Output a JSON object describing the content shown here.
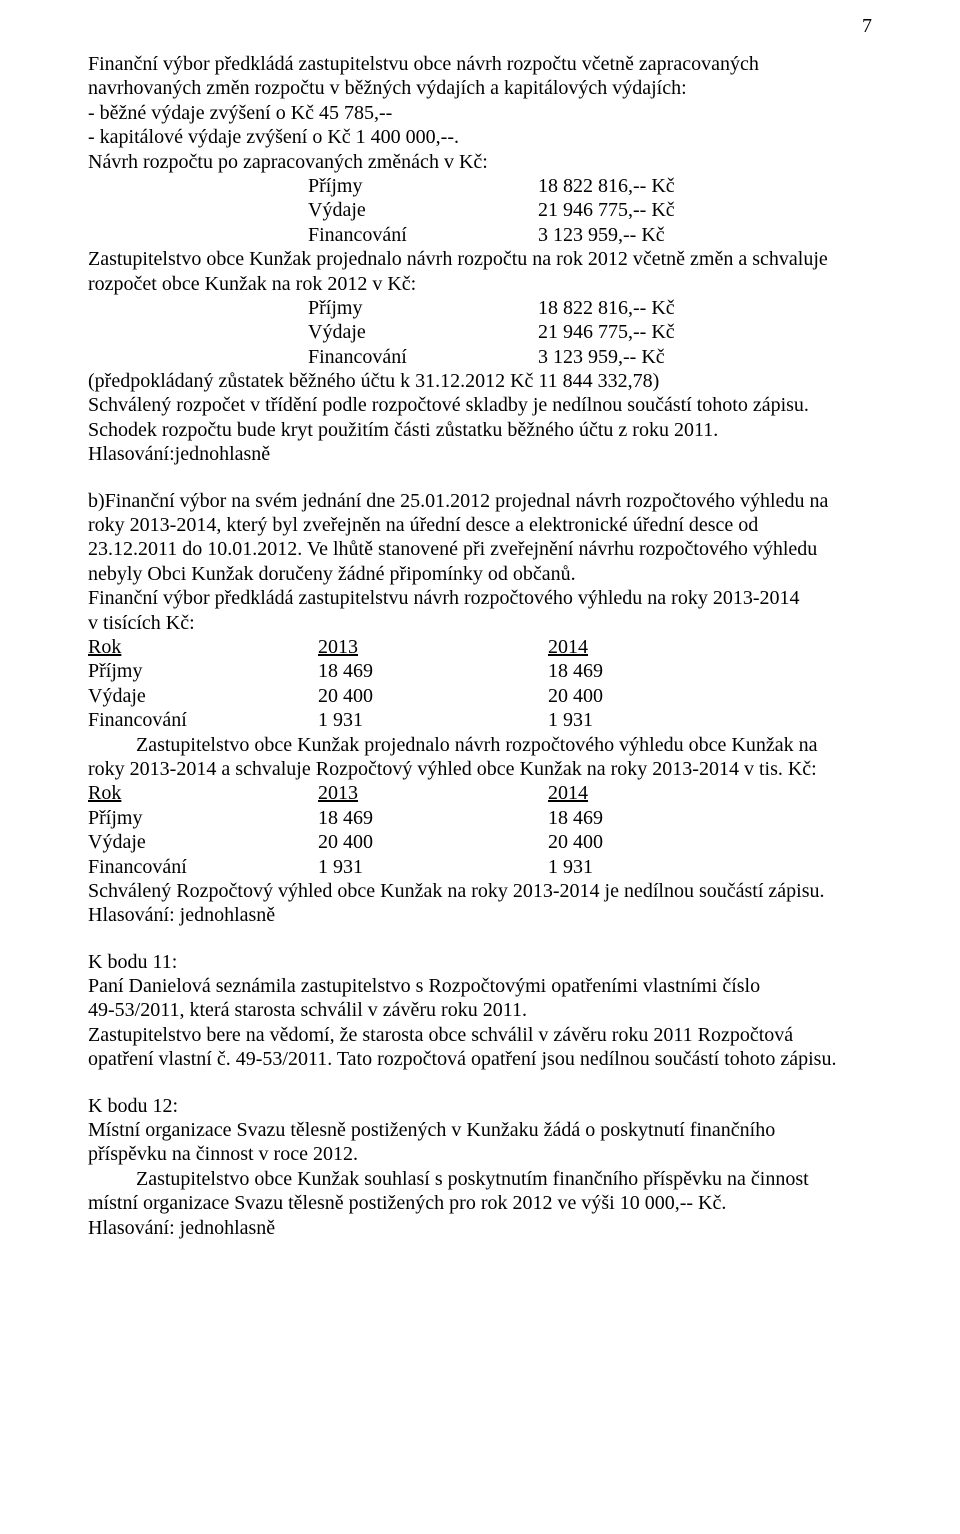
{
  "page_number": "7",
  "p1": {
    "l1": "Finanční výbor předkládá zastupitelstvu obce návrh rozpočtu včetně zapracovaných",
    "l2": "navrhovaných změn rozpočtu v běžných výdajích a kapitálových výdajích:",
    "l3": "- běžné výdaje zvýšení o        Kč      45 785,--",
    "l4": "- kapitálové výdaje zvýšení o Kč 1 400 000,--.",
    "l5": "Návrh rozpočtu po zapracovaných změnách v Kč:",
    "r1a": "Příjmy",
    "r1b": "18 822 816,-- Kč",
    "r2a": "Výdaje",
    "r2b": "21 946 775,-- Kč",
    "r3a": "Financování",
    "r3b": "3 123 959,-- Kč",
    "l6": "Zastupitelstvo obce Kunžak projednalo návrh rozpočtu na rok 2012 včetně změn a schvaluje",
    "l7": "rozpočet obce Kunžak na rok 2012 v Kč:",
    "r4a": "Příjmy",
    "r4b": "18 822 816,-- Kč",
    "r5a": "Výdaje",
    "r5b": "21 946 775,-- Kč",
    "r6a": "Financování",
    "r6b": "3 123 959,-- Kč",
    "l8": "(předpokládaný zůstatek běžného účtu k 31.12.2012 Kč 11 844 332,78)",
    "l9": "Schválený rozpočet v třídění podle rozpočtové skladby je nedílnou součástí tohoto  zápisu.",
    "l10": "Schodek rozpočtu bude kryt použitím části zůstatku běžného účtu z roku 2011.",
    "l11": "Hlasování:jednohlasně"
  },
  "p2": {
    "l1": "b)Finanční výbor na svém jednání dne 25.01.2012 projednal návrh rozpočtového výhledu na",
    "l2": "roky 2013-2014, který byl zveřejněn na úřední desce a elektronické úřední desce od",
    "l3": "23.12.2011 do 10.01.2012. Ve lhůtě stanovené při zveřejnění návrhu rozpočtového výhledu",
    "l4": "nebyly Obci Kunžak doručeny žádné připomínky od občanů.",
    "l5": "Finanční výbor předkládá zastupitelstvu návrh rozpočtového výhledu na roky 2013-2014",
    "l6": "v tisících Kč:",
    "tab1": {
      "h1": "Rok",
      "h2": "2013",
      "h3": "2014",
      "r1a": "Příjmy",
      "r1b": "18 469",
      "r1c": "18 469",
      "r2a": "Výdaje",
      "r2b": "20 400",
      "r2c": "20 400",
      "r3a": "Financování",
      "r3b": "1 931",
      "r3c": "1 931"
    },
    "l7": "Zastupitelstvo obce Kunžak projednalo návrh rozpočtového výhledu obce Kunžak na",
    "l8": "roky 2013-2014 a schvaluje Rozpočtový výhled obce Kunžak na roky 2013-2014 v tis. Kč:",
    "tab2": {
      "h1": "Rok",
      "h2": "2013",
      "h3": "2014",
      "r1a": "Příjmy",
      "r1b": "18 469",
      "r1c": "18 469",
      "r2a": "Výdaje",
      "r2b": "20 400",
      "r2c": "20 400",
      "r3a": "Financování",
      "r3b": "1 931",
      "r3c": "1 931"
    },
    "l9": "Schválený Rozpočtový výhled obce Kunžak na roky 2013-2014 je nedílnou součástí zápisu.",
    "l10": "Hlasování: jednohlasně"
  },
  "p3": {
    "h": "K bodu 11:",
    "l1": "Paní Danielová seznámila zastupitelstvo s Rozpočtovými opatřeními vlastními číslo",
    "l2": "49-53/2011, která starosta schválil v závěru roku 2011.",
    "l3": "Zastupitelstvo bere na vědomí, že starosta obce schválil v závěru roku 2011 Rozpočtová",
    "l4": "opatření vlastní č. 49-53/2011. Tato rozpočtová opatření jsou nedílnou součástí tohoto zápisu."
  },
  "p4": {
    "h": "K bodu 12:",
    "l1": "Místní organizace Svazu tělesně postižených v Kunžaku žádá o poskytnutí finančního",
    "l2": "příspěvku na činnost v roce 2012.",
    "l3": "Zastupitelstvo obce Kunžak souhlasí  s poskytnutím finančního příspěvku na činnost",
    "l4": "místní organizace Svazu tělesně postižených pro rok 2012 ve výši 10 000,-- Kč.",
    "l5": "Hlasování: jednohlasně"
  }
}
